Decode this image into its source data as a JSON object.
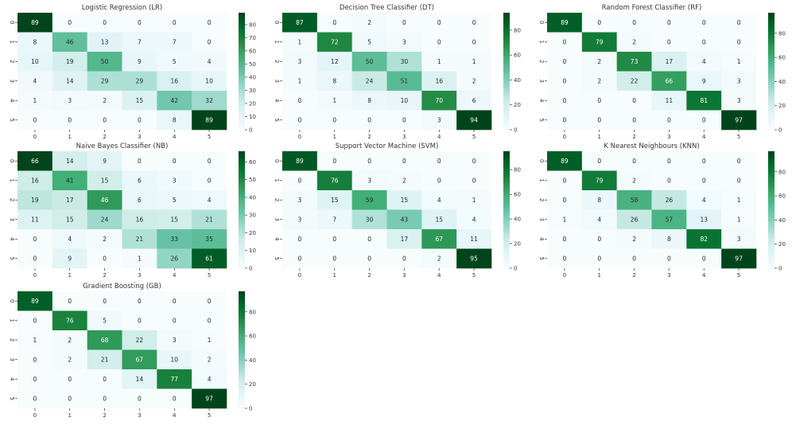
{
  "colors": {
    "low": "#f7fcfd",
    "mid": "#66c2a4",
    "high": "#00441b",
    "text_dark": "#262626",
    "text_light": "#ffffff",
    "axis": "#333333"
  },
  "chart_data": [
    {
      "type": "heatmap",
      "title": "Logistic Regression (LR)",
      "x_ticks": [
        "0",
        "1",
        "2",
        "3",
        "4",
        "5"
      ],
      "y_ticks": [
        "0",
        "1",
        "2",
        "3",
        "4",
        "5"
      ],
      "values": [
        [
          89,
          0,
          0,
          0,
          0,
          0
        ],
        [
          8,
          46,
          13,
          7,
          7,
          0
        ],
        [
          10,
          19,
          50,
          9,
          5,
          4
        ],
        [
          4,
          14,
          29,
          29,
          16,
          10
        ],
        [
          1,
          3,
          2,
          15,
          42,
          32
        ],
        [
          0,
          0,
          0,
          0,
          8,
          89
        ]
      ],
      "colorbar": {
        "min": 0,
        "max": 89,
        "ticks": [
          0,
          10,
          20,
          30,
          40,
          50,
          60,
          70,
          80
        ]
      }
    },
    {
      "type": "heatmap",
      "title": "Decision Tree Classifier (DT)",
      "x_ticks": [
        "0",
        "1",
        "2",
        "3",
        "4",
        "5"
      ],
      "y_ticks": [
        "0",
        "1",
        "2",
        "3",
        "4",
        "5"
      ],
      "values": [
        [
          87,
          0,
          2,
          0,
          0,
          0
        ],
        [
          1,
          72,
          5,
          3,
          0,
          0
        ],
        [
          3,
          12,
          50,
          30,
          1,
          1
        ],
        [
          1,
          8,
          24,
          51,
          16,
          2
        ],
        [
          0,
          1,
          8,
          10,
          70,
          6
        ],
        [
          0,
          0,
          0,
          0,
          3,
          94
        ]
      ],
      "colorbar": {
        "min": 0,
        "max": 94,
        "ticks": [
          0,
          20,
          40,
          60,
          80
        ]
      }
    },
    {
      "type": "heatmap",
      "title": "Random Forest Classifier (RF)",
      "x_ticks": [
        "0",
        "1",
        "2",
        "3",
        "4",
        "5"
      ],
      "y_ticks": [
        "0",
        "1",
        "2",
        "3",
        "4",
        "5"
      ],
      "values": [
        [
          89,
          0,
          0,
          0,
          0,
          0
        ],
        [
          0,
          79,
          2,
          0,
          0,
          0
        ],
        [
          0,
          2,
          73,
          17,
          4,
          1
        ],
        [
          0,
          2,
          22,
          66,
          9,
          3
        ],
        [
          0,
          0,
          0,
          11,
          81,
          3
        ],
        [
          0,
          0,
          0,
          0,
          0,
          97
        ]
      ],
      "colorbar": {
        "min": 0,
        "max": 97,
        "ticks": [
          0,
          20,
          40,
          60,
          80
        ]
      }
    },
    {
      "type": "heatmap",
      "title": "Naive Bayes Classifier (NB)",
      "x_ticks": [
        "0",
        "1",
        "2",
        "3",
        "4",
        "5"
      ],
      "y_ticks": [
        "0",
        "1",
        "2",
        "3",
        "4",
        "5"
      ],
      "values": [
        [
          66,
          14,
          9,
          0,
          0,
          0
        ],
        [
          16,
          41,
          15,
          6,
          3,
          0
        ],
        [
          19,
          17,
          46,
          6,
          5,
          4
        ],
        [
          11,
          15,
          24,
          16,
          15,
          21
        ],
        [
          0,
          4,
          2,
          21,
          33,
          35
        ],
        [
          0,
          9,
          0,
          1,
          26,
          61
        ]
      ],
      "colorbar": {
        "min": 0,
        "max": 66,
        "ticks": [
          0,
          10,
          20,
          30,
          40,
          50,
          60
        ]
      }
    },
    {
      "type": "heatmap",
      "title": "Support Vector Machine (SVM)",
      "x_ticks": [
        "0",
        "1",
        "2",
        "3",
        "4",
        "5"
      ],
      "y_ticks": [
        "0",
        "1",
        "2",
        "3",
        "4",
        "5"
      ],
      "values": [
        [
          89,
          0,
          0,
          0,
          0,
          0
        ],
        [
          0,
          76,
          3,
          2,
          0,
          0
        ],
        [
          3,
          15,
          59,
          15,
          4,
          1
        ],
        [
          3,
          7,
          30,
          43,
          15,
          4
        ],
        [
          0,
          0,
          0,
          17,
          67,
          11
        ],
        [
          0,
          0,
          0,
          0,
          2,
          95
        ]
      ],
      "colorbar": {
        "min": 0,
        "max": 95,
        "ticks": [
          0,
          20,
          40,
          60,
          80
        ]
      }
    },
    {
      "type": "heatmap",
      "title": "K Nearest Neighbours (KNN)",
      "x_ticks": [
        "0",
        "1",
        "2",
        "3",
        "4",
        "5"
      ],
      "y_ticks": [
        "0",
        "1",
        "2",
        "3",
        "4",
        "5"
      ],
      "values": [
        [
          89,
          0,
          0,
          0,
          0,
          0
        ],
        [
          0,
          79,
          2,
          0,
          0,
          0
        ],
        [
          0,
          8,
          58,
          26,
          4,
          1
        ],
        [
          1,
          4,
          26,
          57,
          13,
          1
        ],
        [
          0,
          0,
          2,
          8,
          82,
          3
        ],
        [
          0,
          0,
          0,
          0,
          0,
          97
        ]
      ],
      "colorbar": {
        "min": 0,
        "max": 97,
        "ticks": [
          0,
          20,
          40,
          60,
          80
        ]
      }
    },
    {
      "type": "heatmap",
      "title": "Gradient Boosting (GB)",
      "x_ticks": [
        "0",
        "1",
        "2",
        "3",
        "4",
        "5"
      ],
      "y_ticks": [
        "0",
        "1",
        "2",
        "3",
        "4",
        "5"
      ],
      "values": [
        [
          89,
          0,
          0,
          0,
          0,
          0
        ],
        [
          0,
          76,
          5,
          0,
          0,
          0
        ],
        [
          1,
          2,
          68,
          22,
          3,
          1
        ],
        [
          0,
          2,
          21,
          67,
          10,
          2
        ],
        [
          0,
          0,
          0,
          14,
          77,
          4
        ],
        [
          0,
          0,
          0,
          0,
          0,
          97
        ]
      ],
      "colorbar": {
        "min": 0,
        "max": 97,
        "ticks": [
          0,
          20,
          40,
          60,
          80
        ]
      }
    }
  ]
}
